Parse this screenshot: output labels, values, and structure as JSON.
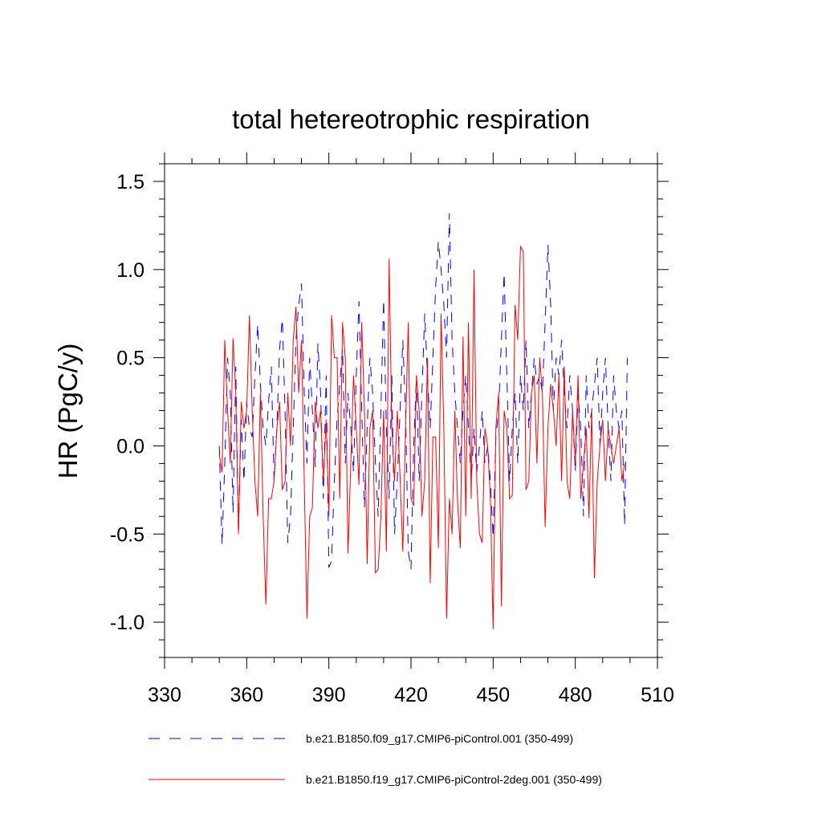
{
  "chart_data": {
    "type": "line",
    "title": "total hetereotrophic respiration",
    "xlabel": "",
    "ylabel": "HR  (PgC/y)",
    "xlim": [
      330,
      510
    ],
    "ylim": [
      -1.2,
      1.6
    ],
    "x_ticks": [
      330,
      360,
      390,
      420,
      450,
      480,
      510
    ],
    "x_tick_labels": [
      "330",
      "360",
      "390",
      "420",
      "450",
      "480",
      "510"
    ],
    "y_ticks": [
      -1.0,
      -0.5,
      0.0,
      0.5,
      1.0,
      1.5
    ],
    "y_tick_labels": [
      "-1.0",
      "-0.5",
      "0.0",
      "0.5",
      "1.0",
      "1.5"
    ],
    "x_start": 350,
    "x_step": 1,
    "series": [
      {
        "name": "b.e21.B1850.f09_g17.CMIP6-piControl.001 (350-499)",
        "color": "#0000ff",
        "dash": "dashed",
        "values": [
          0.0,
          -0.56,
          -0.1,
          0.5,
          0.3,
          -0.38,
          0.45,
          -0.5,
          0.15,
          -0.2,
          0.25,
          0.1,
          0.05,
          0.4,
          0.69,
          0.35,
          0.1,
          0.0,
          0.25,
          0.45,
          -0.2,
          0.1,
          0.55,
          0.72,
          0.2,
          -0.55,
          -0.4,
          0.1,
          0.6,
          0.8,
          0.92,
          0.3,
          -0.1,
          0.5,
          0.2,
          -0.12,
          0.58,
          0.3,
          -0.3,
          0.4,
          -0.69,
          -0.65,
          -0.2,
          0.15,
          0.35,
          0.55,
          -0.1,
          0.3,
          0.1,
          -0.15,
          0.4,
          0.82,
          0.2,
          -0.35,
          0.1,
          0.5,
          0.3,
          -0.1,
          -0.4,
          0.2,
          0.83,
          0.1,
          -0.3,
          0.4,
          -0.5,
          -0.2,
          0.2,
          0.6,
          0.2,
          -0.6,
          -0.7,
          0.0,
          0.4,
          -0.2,
          0.3,
          0.75,
          0.4,
          0.1,
          0.5,
          0.9,
          1.16,
          1.0,
          0.8,
          0.5,
          1.32,
          0.6,
          0.3,
          0.1,
          -0.1,
          0.2,
          0.4,
          0.1,
          -0.2,
          0.1,
          -0.15,
          0.0,
          0.2,
          -0.1,
          0.0,
          -0.2,
          -0.52,
          0.05,
          0.2,
          0.6,
          0.98,
          0.4,
          -0.2,
          0.1,
          0.3,
          -0.1,
          0.4,
          0.2,
          0.6,
          0.1,
          0.3,
          0.5,
          0.35,
          0.4,
          0.3,
          0.7,
          1.14,
          0.8,
          0.2,
          0.5,
          0.4,
          0.6,
          0.3,
          0.1,
          0.4,
          0.2,
          -0.15,
          0.3,
          0.1,
          -0.4,
          0.4,
          0.1,
          0.2,
          0.35,
          0.5,
          0.0,
          0.3,
          0.5,
          0.1,
          -0.2,
          0.4,
          0.2,
          0.1,
          0.2,
          -0.45,
          0.5
        ]
      },
      {
        "name": "b.e21.B1850.f19_g17.CMIP6-piControl-2deg.001 (350-499)",
        "color": "#ff0000",
        "dash": "solid",
        "values": [
          -0.05,
          -0.15,
          0.6,
          0.2,
          -0.1,
          0.61,
          0.3,
          -0.5,
          0.25,
          0.1,
          0.2,
          0.74,
          0.2,
          -0.2,
          -0.4,
          0.3,
          -0.4,
          -0.9,
          -0.3,
          -0.3,
          -0.2,
          0.1,
          0.25,
          -0.25,
          -0.2,
          0.3,
          0.0,
          0.6,
          0.79,
          0.3,
          0.6,
          -0.2,
          -0.98,
          -0.4,
          -0.35,
          0.25,
          0.1,
          0.2,
          -0.2,
          0.15,
          -0.4,
          0.74,
          0.5,
          0.5,
          -0.3,
          0.7,
          0.5,
          -0.61,
          -0.1,
          0.4,
          0.1,
          -0.22,
          0.7,
          0.2,
          -0.67,
          0.1,
          0.2,
          -0.72,
          -0.7,
          -0.4,
          0.2,
          -0.6,
          1.06,
          0.1,
          -0.2,
          0.2,
          -0.18,
          -0.6,
          0.1,
          0.7,
          -0.3,
          -0.34,
          0.4,
          0.2,
          -0.4,
          -0.2,
          0.5,
          -0.78,
          0.05,
          0.05,
          -0.58,
          0.75,
          0.1,
          -0.98,
          -0.3,
          -0.5,
          0.2,
          -0.32,
          -0.58,
          0.62,
          -0.4,
          0.7,
          -0.3,
          1.0,
          -0.2,
          -0.5,
          -0.55,
          0.1,
          0.0,
          -0.3,
          -1.04,
          0.1,
          0.3,
          -0.91,
          0.2,
          0.1,
          -0.3,
          -0.28,
          0.8,
          0.6,
          1.13,
          1.1,
          -0.25,
          -0.2,
          0.3,
          0.4,
          -0.1,
          0.5,
          0.3,
          -0.46,
          0.1,
          0.35,
          0.2,
          0.0,
          0.4,
          -0.2,
          0.45,
          -0.2,
          -0.3,
          0.2,
          -0.1,
          0.4,
          -0.3,
          -0.1,
          0.1,
          -0.41,
          0.2,
          -0.75,
          -0.2,
          0.0,
          0.15,
          -0.2,
          0.1,
          0.0,
          -0.1,
          0.0,
          0.1,
          -0.2,
          -0.1
        ]
      }
    ],
    "legend_position": "bottom"
  }
}
